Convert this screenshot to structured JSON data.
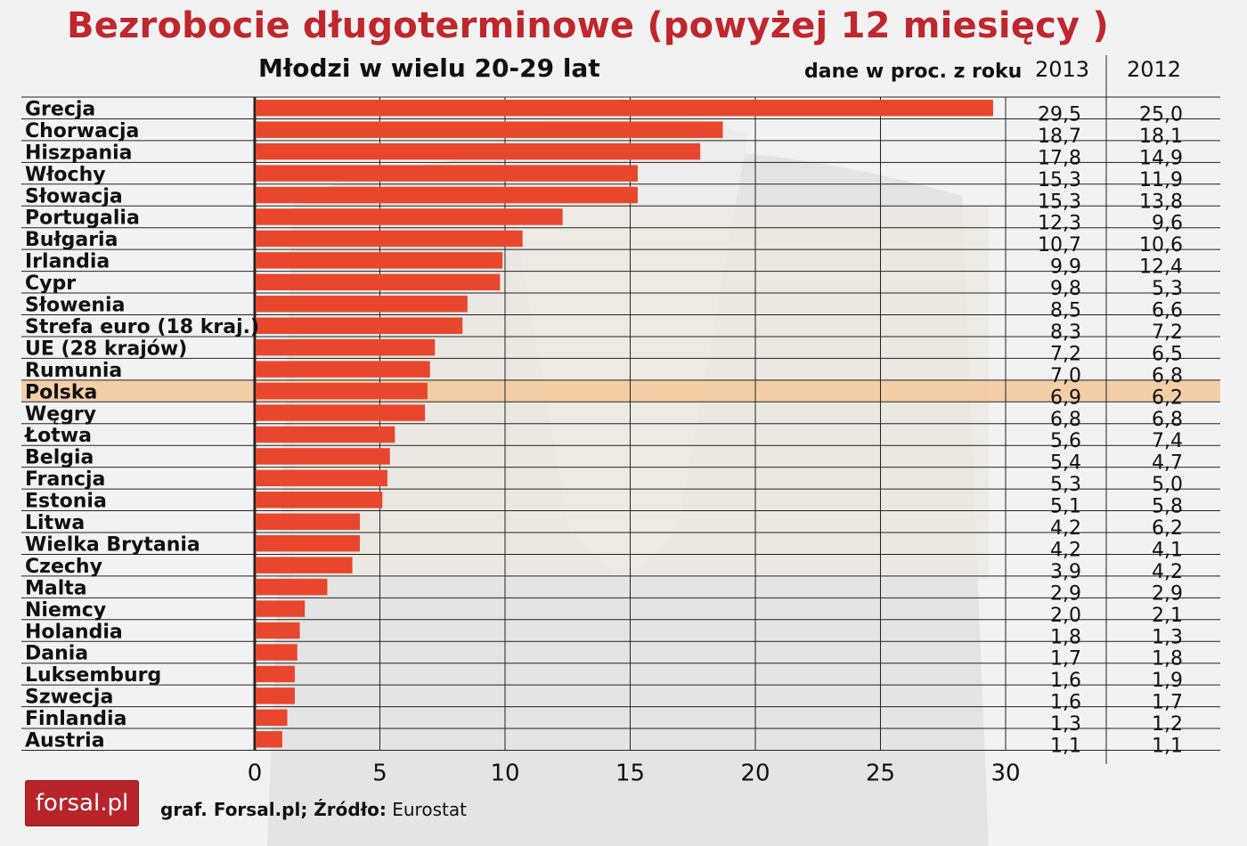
{
  "header": {
    "title": "Bezrobocie długoterminowe (powyżej 12 miesięcy )",
    "subtitle": "Młodzi w wielu 20-29 lat",
    "units": "dane w proc. z roku",
    "year_a": "2013",
    "year_b": "2012"
  },
  "footer": {
    "logo_text": "forsal.pl",
    "credit_prefix": "graf. Forsal.pl; Źródło:",
    "credit_source": "Eurostat"
  },
  "colors": {
    "bar": "#e8472d",
    "title": "#c0262d",
    "highlight_row": "#f5c89a",
    "grid": "#222222"
  },
  "chart_data": {
    "type": "bar",
    "orientation": "horizontal",
    "title": "Bezrobocie długoterminowe (powyżej 12 miesięcy )",
    "subtitle": "Młodzi w wielu 20-29 lat",
    "xlim": [
      0,
      30
    ],
    "xticks": [
      "0",
      "5",
      "10",
      "15",
      "20",
      "25",
      "30"
    ],
    "grid": true,
    "highlight": "Polska",
    "categories": [
      "Grecja",
      "Chorwacja",
      "Hiszpania",
      "Włochy",
      "Słowacja",
      "Portugalia",
      "Bułgaria",
      "Irlandia",
      "Cypr",
      "Słowenia",
      "Strefa euro (18 kraj.)",
      "UE (28 krajów)",
      "Rumunia",
      "Polska",
      "Węgry",
      "Łotwa",
      "Belgia",
      "Francja",
      "Estonia",
      "Litwa",
      "Wielka Brytania",
      "Czechy",
      "Malta",
      "Niemcy",
      "Holandia",
      "Dania",
      "Luksemburg",
      "Szwecja",
      "Finlandia",
      "Austria"
    ],
    "series": [
      {
        "name": "2013",
        "values": [
          29.5,
          18.7,
          17.8,
          15.3,
          15.3,
          12.3,
          10.7,
          9.9,
          9.8,
          8.5,
          8.3,
          7.2,
          7.0,
          6.9,
          6.8,
          5.6,
          5.4,
          5.3,
          5.1,
          4.2,
          4.2,
          3.9,
          2.9,
          2.0,
          1.8,
          1.7,
          1.6,
          1.6,
          1.3,
          1.1
        ]
      },
      {
        "name": "2012",
        "values": [
          25.0,
          18.1,
          14.9,
          11.9,
          13.8,
          9.6,
          10.6,
          12.4,
          5.3,
          6.6,
          7.2,
          6.5,
          6.8,
          6.2,
          6.8,
          7.4,
          4.7,
          5.0,
          5.8,
          6.2,
          4.1,
          4.2,
          2.9,
          2.1,
          1.3,
          1.8,
          1.9,
          1.7,
          1.2,
          1.1
        ]
      }
    ],
    "value_labels_2013": [
      "29,5",
      "18,7",
      "17,8",
      "15,3",
      "15,3",
      "12,3",
      "10,7",
      "9,9",
      "9,8",
      "8,5",
      "8,3",
      "7,2",
      "7,0",
      "6,9",
      "6,8",
      "5,6",
      "5,4",
      "5,3",
      "5,1",
      "4,2",
      "4,2",
      "3,9",
      "2,9",
      "2,0",
      "1,8",
      "1,7",
      "1,6",
      "1,6",
      "1,3",
      "1,1"
    ],
    "value_labels_2012": [
      "25,0",
      "18,1",
      "14,9",
      "11,9",
      "13,8",
      "9,6",
      "10,6",
      "12,4",
      "5,3",
      "6,6",
      "7,2",
      "6,5",
      "6,8",
      "6,2",
      "6,8",
      "7,4",
      "4,7",
      "5,0",
      "5,8",
      "6,2",
      "4,1",
      "4,2",
      "2,9",
      "2,1",
      "1,3",
      "1,8",
      "1,9",
      "1,7",
      "1,2",
      "1,1"
    ]
  }
}
